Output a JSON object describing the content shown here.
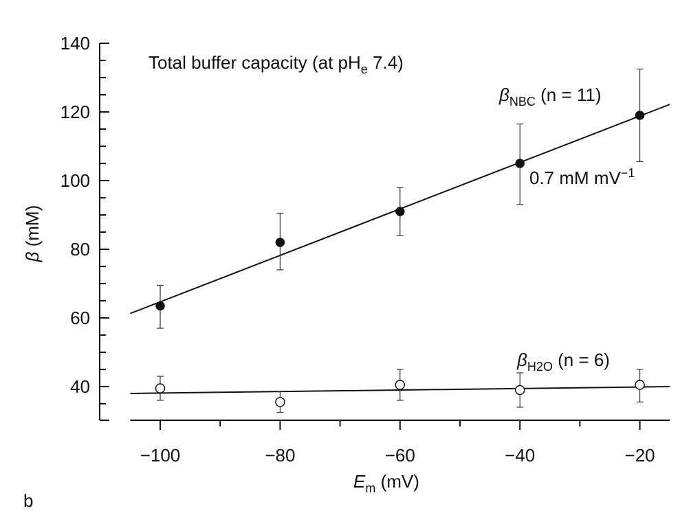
{
  "chart_data": {
    "type": "scatter",
    "title": "Total buffer capacity (at pH",
    "title_sub": "e",
    "title_end": " 7.4)",
    "xlabel": "E",
    "xlabel_sub": "m",
    "xlabel_unit": " (mV)",
    "ylabel": "β",
    "ylabel_unit": " (mM)",
    "xlim": [
      -110,
      -15
    ],
    "ylim": [
      30,
      140
    ],
    "xticks": [
      -100,
      -80,
      -60,
      -40,
      -20
    ],
    "xtick_labels": [
      "−100",
      "−80",
      "−60",
      "−40",
      "−20"
    ],
    "yticks": [
      40,
      60,
      80,
      100,
      120,
      140
    ],
    "ytick_labels": [
      "40",
      "60",
      "80",
      "100",
      "120",
      "140"
    ],
    "grid": false,
    "panel_label": "b",
    "series": [
      {
        "name": "βNBC (n=11)",
        "label_main": "β",
        "label_sub": "NBC",
        "label_n": " (n = 11)",
        "marker": "filled-circle",
        "x": [
          -100,
          -80,
          -60,
          -40,
          -20
        ],
        "y": [
          63.5,
          82,
          91,
          105,
          119
        ],
        "err_low": [
          57,
          74,
          84,
          93,
          105.5
        ],
        "err_high": [
          69.5,
          90.5,
          98,
          116.5,
          132.5
        ],
        "fit": {
          "x": [
            -105,
            -15
          ],
          "y": [
            61.3,
            122.2
          ]
        },
        "annotation": "0.7 mM mV",
        "annotation_sup": "−1"
      },
      {
        "name": "βH2O (n=6)",
        "label_main": "β",
        "label_sub": "H2O",
        "label_n": " (n = 6)",
        "marker": "open-circle",
        "x": [
          -100,
          -80,
          -60,
          -40,
          -20
        ],
        "y": [
          39.5,
          35.5,
          40.5,
          39,
          40.5
        ],
        "err_low": [
          36,
          32.5,
          36,
          34,
          35.5
        ],
        "err_high": [
          43,
          38.5,
          45,
          44,
          45
        ],
        "fit": {
          "x": [
            -105,
            -15
          ],
          "y": [
            38,
            40
          ]
        }
      }
    ]
  }
}
